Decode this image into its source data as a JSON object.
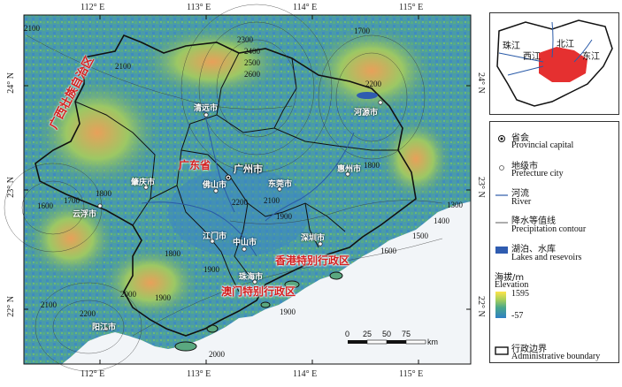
{
  "axes": {
    "top_lon": [
      "112° E",
      "113° E",
      "114° E",
      "115° E"
    ],
    "bottom_lon": [
      "112° E",
      "113° E",
      "114° E",
      "115° E"
    ],
    "left_lat": [
      "24° N",
      "23° N",
      "22° N"
    ],
    "right_lat": [
      "24° N",
      "23° N",
      "22° N"
    ]
  },
  "regions": {
    "guangxi": "广西壮族自治区",
    "guangdong": "广东省",
    "hongkong": "香港特别行政区",
    "macao": "澳门特别行政区"
  },
  "cities": {
    "guangzhou": "广州市",
    "qingyuan": "清远市",
    "heyuan": "河源市",
    "zhaoqing": "肇庆市",
    "foshan": "佛山市",
    "dongguan": "东莞市",
    "huizhou": "惠州市",
    "yunfu": "云浮市",
    "jiangmen": "江门市",
    "zhongshan": "中山市",
    "shenzhen": "深圳市",
    "zhuhai": "珠海市",
    "yangjiang": "阳江市"
  },
  "contours": [
    "2100",
    "2100",
    "2300",
    "2400",
    "2500",
    "2600",
    "1700",
    "2200",
    "1800",
    "1700",
    "1600",
    "1800",
    "2100",
    "2200",
    "1900",
    "1300",
    "1400",
    "1500",
    "1600",
    "1800",
    "1900",
    "2000",
    "1900",
    "2200",
    "2000",
    "2100",
    "1900"
  ],
  "scalebar": {
    "ticks": [
      "0",
      "25",
      "50",
      "75"
    ],
    "unit": "km"
  },
  "inset": {
    "rivers": [
      "珠江",
      "北江",
      "西江",
      "东江"
    ]
  },
  "legend": {
    "capital_zh": "省会",
    "capital_en": "Provincial capital",
    "prefecture_zh": "地级市",
    "prefecture_en": "Prefecture city",
    "river_zh": "河流",
    "river_en": "River",
    "precip_zh": "降水等值线",
    "precip_en": "Precipitation contour",
    "lake_zh": "湖泊、水库",
    "lake_en": "Lakes and resevoirs",
    "elev_zh": "海拔/m",
    "elev_en": "Elevation",
    "elev_max": "1595",
    "elev_min": "-57",
    "boundary_zh": "行政边界",
    "boundary_en": "Administrative boundary"
  },
  "colors": {
    "sea": "#f2f5f8",
    "land_low": "#3f8fc4",
    "land_mid": "#4aa88a",
    "land_high": "#8cc86a",
    "peak": "#e89c5a",
    "boundary": "#111111",
    "label_red": "#d42020",
    "inset_red": "#e53030"
  }
}
